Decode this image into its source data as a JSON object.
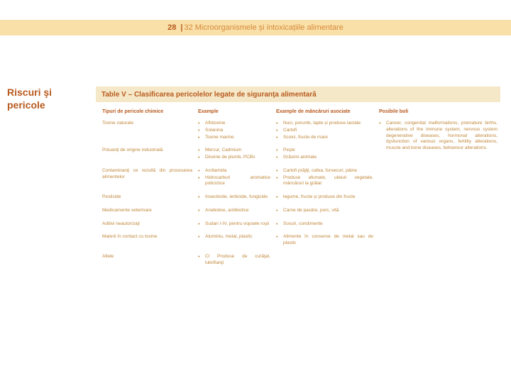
{
  "colors": {
    "stripe_bg": "#f8e0a8",
    "page_number": "#b85a1e",
    "header_title": "#d8893a",
    "sidebar_title": "#b85a1e",
    "table_bar_bg": "#f5e8c8",
    "table_bar_text": "#b85a1e",
    "th_text": "#b85a1e",
    "td_text": "#c0873a",
    "td_label": "#c0873a",
    "bullet": "#c0873a"
  },
  "header": {
    "page": "28",
    "sep": "|",
    "title": "32 Microorganismele și intoxicațiile alimentare"
  },
  "sidebar": {
    "title": "Riscuri şi pericole"
  },
  "table": {
    "title": "Table V – Clasificarea pericolelor legate de siguranţa alimentară",
    "columns": [
      "Tipuri de pericole chimice",
      "Example",
      "Example de mâncăruri asociate",
      "Posibile boli"
    ],
    "rows": [
      {
        "label": "Toxine naturale",
        "examples": [
          "Aflotoxine",
          "Solanina",
          "Toxine marine"
        ],
        "foods": [
          "Nuci, porumb, lapte și produse lactate",
          "Cartofi",
          "Scoici, fructe de mare"
        ],
        "disease": "Cancer, congenital malformations, premature births, alterations of the immune system, nervous system degenerative diseases, hormonal alterations, dysfunction of various organs, fertility alterations, muscle and bone diseases, behaviour alterations."
      },
      {
        "label": "Poluanţi de origine industrială",
        "examples": [
          "Mercur, Cadmium",
          "Dioxine de plumb, PCBs"
        ],
        "foods": [
          "Peşte",
          "Grăsimi animale"
        ],
        "disease": ""
      },
      {
        "label": "Contaminanţi ce rezultă din procesarea alimentelor",
        "examples": [
          "Acrilamida",
          "Hidrocarburi aromatice policiclice"
        ],
        "foods": [
          "Cartofi prăjiţi, cafea, fursecuri, pâine",
          "Produse afumate, uleiuri vegetale, mâncăruri la grătar"
        ],
        "disease": ""
      },
      {
        "label": "Pesticide",
        "examples": [
          "Insecticide, ierbicide, fungicide"
        ],
        "foods": [
          "legume, fructe și produse din fructe"
        ],
        "disease": ""
      },
      {
        "label": "Medicamente veterinare",
        "examples": [
          "Anabolice, antibiotice"
        ],
        "foods": [
          "Carne de pasăre, porc, vită"
        ],
        "disease": ""
      },
      {
        "label": "Aditivi neautorizaţi",
        "examples": [
          "Sudan I-IV, pentru vopsele roşii"
        ],
        "foods": [
          "Sosuri, condimente"
        ],
        "disease": ""
      },
      {
        "label": "Materii în contact cu toxine",
        "examples": [
          "Aluminiu, metal, plastic"
        ],
        "foods": [
          "Alimente în conserve de metal sau de plastic"
        ],
        "disease": ""
      },
      {
        "label": "Altele",
        "examples": [
          "Cl Produse de curăţat, lubrifianţi"
        ],
        "foods": [],
        "disease": ""
      }
    ]
  }
}
